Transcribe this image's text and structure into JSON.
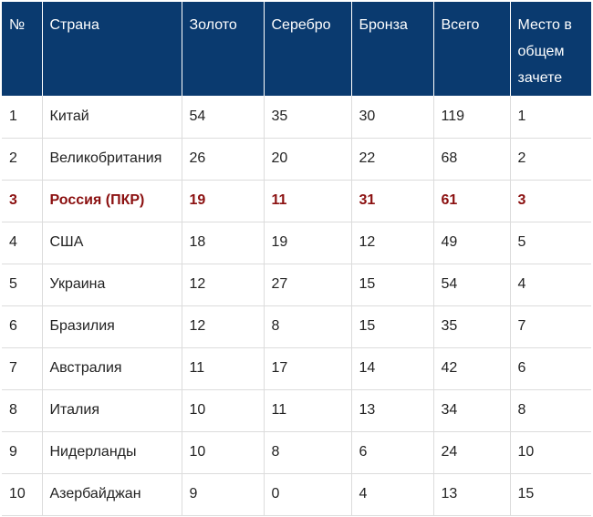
{
  "table": {
    "headers": [
      "№",
      "Страна",
      "Золото",
      "Серебро",
      "Бронза",
      "Всего",
      "Место в общем зачете"
    ],
    "rows": [
      {
        "cells": [
          "1",
          "Китай",
          "54",
          "35",
          "30",
          "119",
          "1"
        ],
        "highlight": false
      },
      {
        "cells": [
          "2",
          "Великобритания",
          "26",
          "20",
          "22",
          "68",
          "2"
        ],
        "highlight": false
      },
      {
        "cells": [
          "3",
          "Россия (ПКР)",
          "19",
          "11",
          "31",
          "61",
          "3"
        ],
        "highlight": true
      },
      {
        "cells": [
          "4",
          "США",
          "18",
          "19",
          "12",
          "49",
          "5"
        ],
        "highlight": false
      },
      {
        "cells": [
          "5",
          "Украина",
          "12",
          "27",
          "15",
          "54",
          "4"
        ],
        "highlight": false
      },
      {
        "cells": [
          "6",
          "Бразилия",
          "12",
          "8",
          "15",
          "35",
          "7"
        ],
        "highlight": false
      },
      {
        "cells": [
          "7",
          "Австралия",
          "11",
          "17",
          "14",
          "42",
          "6"
        ],
        "highlight": false
      },
      {
        "cells": [
          "8",
          "Италия",
          "10",
          "11",
          "13",
          "34",
          "8"
        ],
        "highlight": false
      },
      {
        "cells": [
          "9",
          "Нидерланды",
          "10",
          "8",
          "6",
          "24",
          "10"
        ],
        "highlight": false
      },
      {
        "cells": [
          "10",
          "Азербайджан",
          "9",
          "0",
          "4",
          "13",
          "15"
        ],
        "highlight": false
      }
    ]
  },
  "colors": {
    "header_bg": "#0a3a6f",
    "header_text": "#ffffff",
    "highlight_text": "#8b1010",
    "grid_line": "#dcdcdc"
  }
}
